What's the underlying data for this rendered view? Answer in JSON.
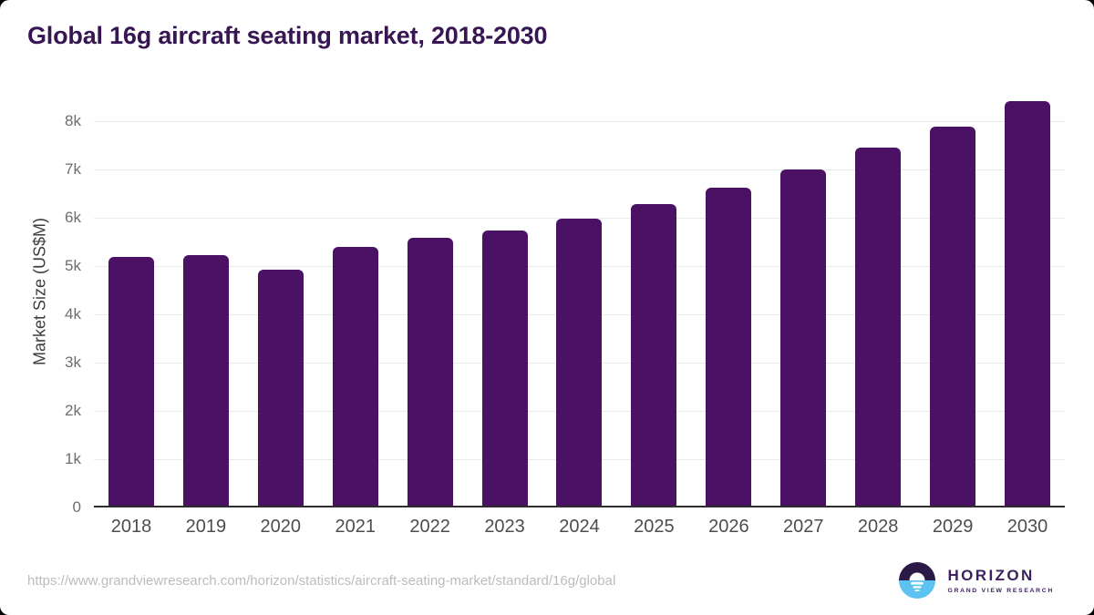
{
  "title": "Global 16g aircraft seating market, 2018-2030",
  "chart_data": {
    "type": "bar",
    "title": "Global 16g aircraft seating market, 2018-2030",
    "categories": [
      "2018",
      "2019",
      "2020",
      "2021",
      "2022",
      "2023",
      "2024",
      "2025",
      "2026",
      "2027",
      "2028",
      "2029",
      "2030"
    ],
    "values": [
      5180,
      5230,
      4930,
      5390,
      5580,
      5740,
      5990,
      6290,
      6620,
      7000,
      7450,
      7890,
      8410
    ],
    "xlabel": "",
    "ylabel": "Market Size (US$M)",
    "ylim": [
      0,
      8600
    ],
    "yticks": [
      0,
      1000,
      2000,
      3000,
      4000,
      5000,
      6000,
      7000,
      8000
    ],
    "ytick_labels": [
      "0",
      "1k",
      "2k",
      "3k",
      "4k",
      "5k",
      "6k",
      "7k",
      "8k"
    ],
    "grid": true,
    "legend": false,
    "bar_color": "#4a1164"
  },
  "footer": {
    "source_url": "https://www.grandviewresearch.com/horizon/statistics/aircraft-seating-market/standard/16g/global",
    "logo": {
      "name": "HORIZON",
      "subtitle": "GRAND VIEW RESEARCH"
    }
  },
  "colors": {
    "bar": "#4a1164",
    "title": "#371653",
    "ytitle": "#3d3d3d",
    "tick": "#6e6e6e",
    "xlabel": "#4d4d4d",
    "grid": "#e9e9e9",
    "axis": "#2d2d2d",
    "url": "#bcbcbc",
    "logo": "#3c2160",
    "logo_icon_dark": "#2b1a45",
    "logo_icon_blue": "#5cc3f0"
  }
}
